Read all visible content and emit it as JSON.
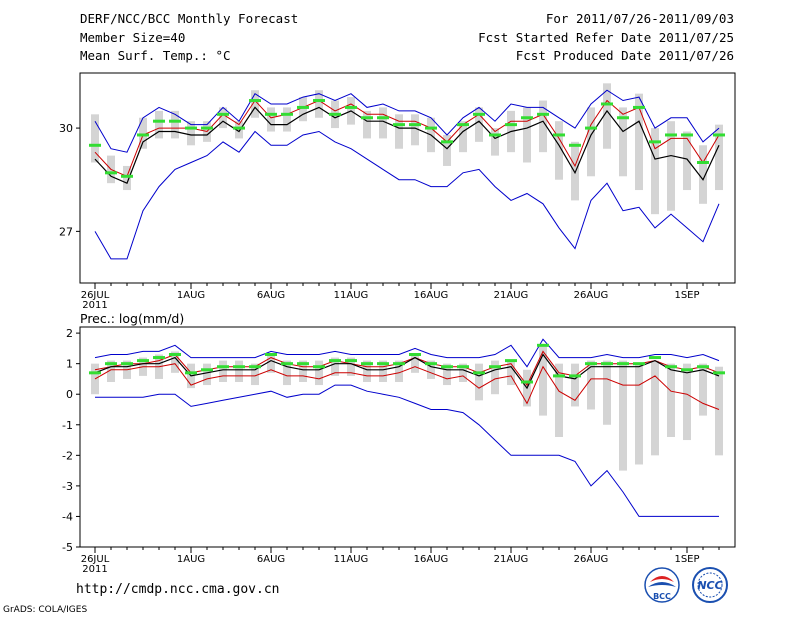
{
  "header": {
    "title": "DERF/NCC/BCC Monthly Forecast",
    "member_size": "Member Size=40",
    "variable": "Mean Surf. Temp.: °C",
    "period": "For 2011/07/26-2011/09/03",
    "fcst_started": "Fcst Started Refer Date 2011/07/25",
    "fcst_produced": "Fcst Produced Date 2011/07/26"
  },
  "footer": {
    "url": "http://cmdp.ncc.cma.gov.cn",
    "credit": "GrADS: COLA/IGES",
    "logo_left": "BCC",
    "logo_right": "NCC"
  },
  "colors": {
    "ensemble_max": "#0000cc",
    "ensemble_min": "#0000cc",
    "ensemble_mean": "#000000",
    "member_median": "#cc0000",
    "spread_bar": "#d4d4d4",
    "marker": "#33dd33"
  },
  "chart_data": [
    {
      "type": "line",
      "title": "Mean Surf. Temp.: °C",
      "x_days": 40,
      "x_ticks": [
        {
          "day": 0,
          "label": "26JUL"
        },
        {
          "day": 6,
          "label": "1AUG"
        },
        {
          "day": 11,
          "label": "6AUG"
        },
        {
          "day": 16,
          "label": "11AUG"
        },
        {
          "day": 21,
          "label": "16AUG"
        },
        {
          "day": 26,
          "label": "21AUG"
        },
        {
          "day": 31,
          "label": "26AUG"
        },
        {
          "day": 37,
          "label": "1SEP"
        }
      ],
      "x_year_label": "2011",
      "ylim": [
        25.5,
        31.6
      ],
      "y_ticks": [
        27,
        30
      ],
      "series": [
        {
          "name": "max",
          "values": [
            30.2,
            29.4,
            29.3,
            30.3,
            30.6,
            30.4,
            30.1,
            30.1,
            30.6,
            30.2,
            31.0,
            30.7,
            30.7,
            30.9,
            31.0,
            30.8,
            31.0,
            30.6,
            30.7,
            30.5,
            30.5,
            30.3,
            29.8,
            30.3,
            30.6,
            30.2,
            30.7,
            30.6,
            30.6,
            30.3,
            30.0,
            30.7,
            31.1,
            30.8,
            30.9,
            30.0,
            30.3,
            30.3,
            29.6,
            30.0
          ]
        },
        {
          "name": "mean",
          "values": [
            29.1,
            28.6,
            28.4,
            29.6,
            29.9,
            29.9,
            29.8,
            29.8,
            30.2,
            29.9,
            30.6,
            30.1,
            30.1,
            30.4,
            30.6,
            30.3,
            30.5,
            30.2,
            30.2,
            30.0,
            30.0,
            29.8,
            29.4,
            29.9,
            30.2,
            29.7,
            29.9,
            30.0,
            30.2,
            29.5,
            28.7,
            29.8,
            30.5,
            29.9,
            30.2,
            29.1,
            29.2,
            29.1,
            28.5,
            29.5
          ]
        },
        {
          "name": "median",
          "values": [
            29.3,
            28.8,
            28.6,
            29.8,
            30.0,
            30.0,
            30.0,
            29.9,
            30.4,
            30.1,
            30.8,
            30.3,
            30.4,
            30.6,
            30.8,
            30.5,
            30.7,
            30.4,
            30.4,
            30.2,
            30.2,
            30.0,
            29.6,
            30.1,
            30.4,
            29.9,
            30.2,
            30.2,
            30.4,
            29.7,
            28.9,
            30.1,
            30.8,
            30.4,
            30.6,
            29.4,
            29.7,
            29.7,
            29.0,
            29.8
          ]
        },
        {
          "name": "min",
          "values": [
            27.0,
            26.2,
            26.2,
            27.6,
            28.3,
            28.8,
            29.0,
            29.2,
            29.6,
            29.3,
            29.9,
            29.5,
            29.5,
            29.8,
            29.9,
            29.6,
            29.4,
            29.1,
            28.8,
            28.5,
            28.5,
            28.3,
            28.3,
            28.7,
            28.8,
            28.3,
            27.9,
            28.1,
            27.8,
            27.1,
            26.5,
            27.9,
            28.4,
            27.6,
            27.7,
            27.1,
            27.5,
            27.1,
            26.7,
            27.8
          ]
        },
        {
          "name": "bar_top",
          "values": [
            30.4,
            29.2,
            28.9,
            30.3,
            30.5,
            30.5,
            30.2,
            30.2,
            30.6,
            30.2,
            31.1,
            30.6,
            30.6,
            30.9,
            31.1,
            30.8,
            30.9,
            30.5,
            30.6,
            30.4,
            30.4,
            30.3,
            29.8,
            30.2,
            30.6,
            30.0,
            30.5,
            30.6,
            30.8,
            30.2,
            29.6,
            30.6,
            31.3,
            30.6,
            31.0,
            30.0,
            30.2,
            29.9,
            29.5,
            30.1
          ]
        },
        {
          "name": "bar_bottom",
          "values": [
            29.0,
            28.4,
            28.2,
            29.4,
            29.7,
            29.7,
            29.5,
            29.6,
            30.0,
            29.7,
            30.3,
            29.9,
            29.9,
            30.2,
            30.3,
            30.0,
            30.1,
            29.7,
            29.7,
            29.4,
            29.5,
            29.3,
            28.9,
            29.3,
            29.6,
            29.2,
            29.3,
            29.0,
            29.3,
            28.5,
            27.9,
            28.6,
            29.4,
            28.6,
            28.2,
            27.5,
            27.6,
            28.2,
            27.8,
            28.2
          ]
        },
        {
          "name": "marker",
          "values": [
            29.5,
            28.7,
            28.6,
            29.8,
            30.2,
            30.2,
            30.0,
            30.0,
            30.4,
            30.0,
            30.8,
            30.4,
            30.4,
            30.6,
            30.8,
            30.4,
            30.6,
            30.3,
            30.3,
            30.1,
            30.1,
            30.0,
            29.6,
            30.1,
            30.4,
            29.8,
            30.1,
            30.3,
            30.4,
            29.8,
            29.5,
            30.0,
            30.7,
            30.3,
            30.6,
            29.6,
            29.8,
            29.8,
            29.0,
            29.8
          ]
        }
      ]
    },
    {
      "type": "line",
      "title": "Prec.: log(mm/d)",
      "x_days": 40,
      "x_ticks": [
        {
          "day": 0,
          "label": "26JUL"
        },
        {
          "day": 6,
          "label": "1AUG"
        },
        {
          "day": 11,
          "label": "6AUG"
        },
        {
          "day": 16,
          "label": "11AUG"
        },
        {
          "day": 21,
          "label": "16AUG"
        },
        {
          "day": 26,
          "label": "21AUG"
        },
        {
          "day": 31,
          "label": "26AUG"
        },
        {
          "day": 37,
          "label": "1SEP"
        }
      ],
      "x_year_label": "2011",
      "ylim": [
        -5,
        2.2
      ],
      "y_ticks": [
        -5,
        -4,
        -3,
        -2,
        -1,
        0,
        1,
        2
      ],
      "series": [
        {
          "name": "max",
          "values": [
            1.2,
            1.3,
            1.3,
            1.4,
            1.4,
            1.6,
            1.2,
            1.2,
            1.2,
            1.2,
            1.2,
            1.4,
            1.3,
            1.3,
            1.3,
            1.4,
            1.3,
            1.3,
            1.3,
            1.3,
            1.5,
            1.3,
            1.2,
            1.2,
            1.2,
            1.3,
            1.6,
            0.9,
            1.8,
            1.2,
            1.2,
            1.2,
            1.3,
            1.2,
            1.2,
            1.3,
            1.3,
            1.2,
            1.3,
            1.1
          ]
        },
        {
          "name": "mean",
          "values": [
            0.7,
            0.9,
            0.9,
            1.0,
            1.0,
            1.2,
            0.6,
            0.7,
            0.8,
            0.8,
            0.8,
            1.1,
            0.9,
            0.8,
            0.8,
            1.0,
            1.0,
            0.8,
            0.8,
            0.9,
            1.2,
            0.9,
            0.8,
            0.8,
            0.6,
            0.8,
            0.9,
            0.2,
            1.3,
            0.6,
            0.5,
            0.9,
            0.9,
            0.9,
            0.9,
            1.1,
            0.8,
            0.7,
            0.8,
            0.6
          ]
        },
        {
          "name": "median",
          "values": [
            0.8,
            0.9,
            1.0,
            1.0,
            1.1,
            1.3,
            0.7,
            0.8,
            0.9,
            0.9,
            0.9,
            1.2,
            1.0,
            0.9,
            0.9,
            1.1,
            1.0,
            0.9,
            0.9,
            1.0,
            1.2,
            1.0,
            0.9,
            0.9,
            0.7,
            0.9,
            1.0,
            0.3,
            1.4,
            0.7,
            0.6,
            1.0,
            1.0,
            1.0,
            1.0,
            1.1,
            0.9,
            0.8,
            0.9,
            0.7
          ]
        },
        {
          "name": "lower",
          "values": [
            0.5,
            0.8,
            0.8,
            0.9,
            0.9,
            1.0,
            0.3,
            0.5,
            0.6,
            0.6,
            0.6,
            0.8,
            0.6,
            0.6,
            0.5,
            0.7,
            0.7,
            0.6,
            0.6,
            0.7,
            0.9,
            0.7,
            0.5,
            0.6,
            0.2,
            0.5,
            0.6,
            -0.3,
            0.9,
            0.1,
            -0.2,
            0.5,
            0.5,
            0.3,
            0.3,
            0.6,
            0.1,
            0.0,
            -0.3,
            -0.5
          ]
        },
        {
          "name": "min",
          "values": [
            -0.1,
            -0.1,
            -0.1,
            -0.1,
            0.0,
            0.0,
            -0.4,
            -0.3,
            -0.2,
            -0.1,
            0.0,
            0.1,
            -0.1,
            0.0,
            0.0,
            0.3,
            0.3,
            0.1,
            0.0,
            -0.1,
            -0.3,
            -0.5,
            -0.5,
            -0.6,
            -1.0,
            -1.5,
            -2.0,
            -2.0,
            -2.0,
            -2.0,
            -2.2,
            -3.0,
            -2.5,
            -3.2,
            -4.0,
            -4.0,
            -4.0,
            -4.0,
            -4.0,
            -4.0
          ]
        },
        {
          "name": "bar_top",
          "values": [
            1.0,
            1.1,
            1.1,
            1.2,
            1.3,
            1.4,
            1.0,
            1.0,
            1.1,
            1.1,
            1.0,
            1.3,
            1.1,
            1.1,
            1.1,
            1.2,
            1.2,
            1.1,
            1.1,
            1.1,
            1.3,
            1.1,
            1.0,
            1.0,
            1.0,
            1.1,
            1.1,
            0.8,
            1.6,
            1.0,
            1.0,
            1.1,
            1.1,
            1.1,
            1.0,
            1.1,
            1.0,
            1.0,
            1.0,
            0.9
          ]
        },
        {
          "name": "bar_bottom",
          "values": [
            0.0,
            0.4,
            0.5,
            0.6,
            0.5,
            0.7,
            0.2,
            0.3,
            0.4,
            0.4,
            0.3,
            0.7,
            0.3,
            0.4,
            0.3,
            0.6,
            0.6,
            0.4,
            0.4,
            0.4,
            0.7,
            0.5,
            0.3,
            0.4,
            -0.2,
            0.0,
            0.3,
            -0.4,
            -0.7,
            -1.4,
            -0.4,
            -0.5,
            -1.0,
            -2.5,
            -2.3,
            -2.0,
            -1.4,
            -1.5,
            -0.7,
            -2.0
          ]
        },
        {
          "name": "marker",
          "values": [
            0.7,
            1.0,
            1.0,
            1.1,
            1.2,
            1.3,
            0.7,
            0.8,
            0.9,
            0.9,
            0.9,
            1.3,
            1.0,
            1.0,
            0.9,
            1.1,
            1.1,
            1.0,
            1.0,
            1.0,
            1.3,
            1.0,
            0.9,
            0.9,
            0.7,
            0.9,
            1.1,
            0.4,
            1.6,
            0.6,
            0.6,
            1.0,
            1.0,
            1.0,
            1.0,
            1.2,
            0.9,
            0.8,
            0.9,
            0.7
          ]
        }
      ]
    }
  ]
}
